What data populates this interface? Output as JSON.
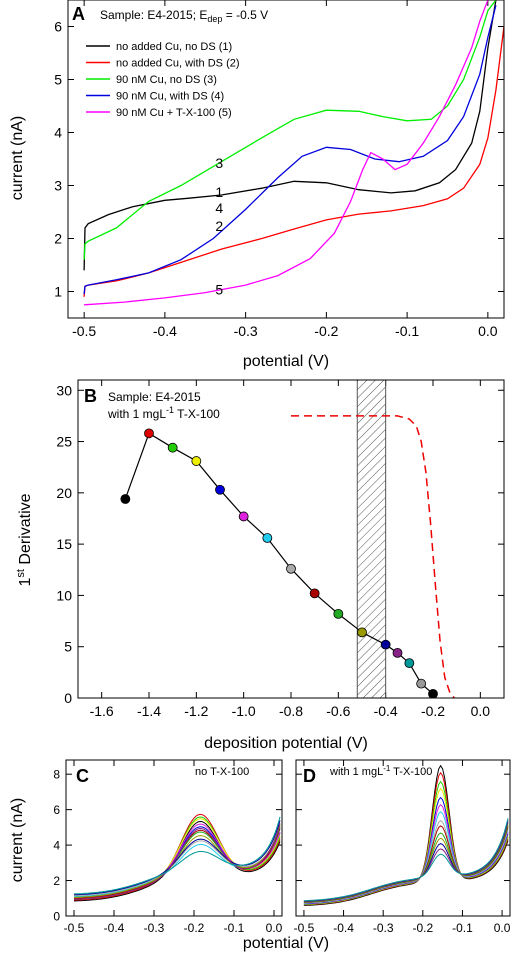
{
  "chart_data": [
    {
      "panel_letter": "A",
      "type": "line",
      "sample_note_prefix": "Sample: E4-2015; E",
      "sample_note_sub": "dep",
      "sample_note_suffix": " = -0.5 V",
      "xlabel": "potential (V)",
      "ylabel": "current (nA)",
      "xlim": [
        -0.52,
        0.02
      ],
      "ylim": [
        0.5,
        6.5
      ],
      "xticks": [
        "-0.5",
        "-0.4",
        "-0.3",
        "-0.2",
        "-0.1",
        "0.0"
      ],
      "yticks": [
        "1",
        "2",
        "3",
        "4",
        "5",
        "6"
      ],
      "legend_position": "top-left",
      "series": [
        {
          "name": "no added Cu, no DS (1)",
          "color": "#000000",
          "curve_label": "1",
          "x": [
            -0.5,
            -0.499,
            -0.495,
            -0.47,
            -0.44,
            -0.4,
            -0.37,
            -0.33,
            -0.28,
            -0.24,
            -0.2,
            -0.16,
            -0.12,
            -0.09,
            -0.06,
            -0.04,
            -0.02,
            -0.01,
            0.0,
            0.01
          ],
          "y": [
            1.4,
            2.2,
            2.28,
            2.45,
            2.6,
            2.72,
            2.76,
            2.82,
            2.95,
            3.08,
            3.05,
            2.92,
            2.86,
            2.9,
            3.05,
            3.3,
            3.8,
            4.4,
            5.6,
            6.5
          ]
        },
        {
          "name": "no added Cu, with DS (2)",
          "color": "#ff0000",
          "curve_label": "2",
          "x": [
            -0.5,
            -0.499,
            -0.495,
            -0.46,
            -0.42,
            -0.38,
            -0.33,
            -0.28,
            -0.24,
            -0.2,
            -0.16,
            -0.12,
            -0.08,
            -0.05,
            -0.03,
            -0.01,
            0.0,
            0.01,
            0.02
          ],
          "y": [
            0.9,
            1.1,
            1.12,
            1.2,
            1.35,
            1.55,
            1.8,
            2.0,
            2.18,
            2.35,
            2.46,
            2.52,
            2.62,
            2.75,
            2.95,
            3.4,
            3.9,
            4.8,
            6.0
          ]
        },
        {
          "name": "90 nM Cu, no DS (3)",
          "color": "#00ee00",
          "curve_label": "3",
          "x": [
            -0.5,
            -0.499,
            -0.495,
            -0.46,
            -0.42,
            -0.38,
            -0.33,
            -0.28,
            -0.24,
            -0.2,
            -0.16,
            -0.13,
            -0.1,
            -0.07,
            -0.05,
            -0.03,
            -0.01,
            0.0,
            0.01
          ],
          "y": [
            1.6,
            1.9,
            1.95,
            2.2,
            2.7,
            3.0,
            3.45,
            3.9,
            4.25,
            4.42,
            4.4,
            4.3,
            4.22,
            4.25,
            4.5,
            5.0,
            5.8,
            6.3,
            6.5
          ]
        },
        {
          "name": "90 nM Cu, with DS (4)",
          "color": "#0000dd",
          "curve_label": "4",
          "x": [
            -0.5,
            -0.499,
            -0.495,
            -0.46,
            -0.42,
            -0.38,
            -0.34,
            -0.3,
            -0.26,
            -0.23,
            -0.2,
            -0.17,
            -0.14,
            -0.11,
            -0.08,
            -0.05,
            -0.03,
            -0.01,
            0.0,
            0.01
          ],
          "y": [
            0.95,
            1.1,
            1.12,
            1.22,
            1.35,
            1.6,
            2.0,
            2.55,
            3.15,
            3.55,
            3.72,
            3.68,
            3.5,
            3.45,
            3.55,
            3.85,
            4.3,
            5.1,
            5.8,
            6.4
          ]
        },
        {
          "name": "90 nM Cu + T-X-100 (5)",
          "color": "#ff00ff",
          "curve_label": "5",
          "x": [
            -0.5,
            -0.45,
            -0.4,
            -0.35,
            -0.3,
            -0.26,
            -0.22,
            -0.19,
            -0.17,
            -0.155,
            -0.145,
            -0.13,
            -0.115,
            -0.1,
            -0.08,
            -0.06,
            -0.04,
            -0.02,
            -0.01,
            0.0
          ],
          "y": [
            0.75,
            0.8,
            0.88,
            0.98,
            1.12,
            1.3,
            1.62,
            2.1,
            2.7,
            3.3,
            3.62,
            3.5,
            3.3,
            3.4,
            3.8,
            4.3,
            4.9,
            5.6,
            6.1,
            6.5
          ]
        }
      ]
    },
    {
      "panel_letter": "B",
      "type": "scatter",
      "sample_note_line1": "Sample: E4-2015",
      "sample_note_line2_prefix": "with 1 mgL",
      "sample_note_line2_sup": "-1",
      "sample_note_line2_suffix": " T-X-100",
      "xlabel": "deposition potential (V)",
      "ylabel_main": "1",
      "ylabel_sup": "st",
      "ylabel_rest": " Derivative",
      "xlim": [
        -1.7,
        0.1
      ],
      "ylim": [
        0,
        31
      ],
      "xticks": [
        "-1.6",
        "-1.4",
        "-1.2",
        "-1.0",
        "-0.8",
        "-0.6",
        "-0.4",
        "-0.2",
        "0.0"
      ],
      "yticks": [
        "0",
        "5",
        "10",
        "15",
        "20",
        "25",
        "30"
      ],
      "shaded_region_x": [
        -0.52,
        -0.4
      ],
      "points": [
        {
          "x": -1.5,
          "y": 19.4,
          "color": "#000000"
        },
        {
          "x": -1.4,
          "y": 25.8,
          "color": "#dd0000"
        },
        {
          "x": -1.3,
          "y": 24.4,
          "color": "#22cc00"
        },
        {
          "x": -1.2,
          "y": 23.1,
          "color": "#eeee00"
        },
        {
          "x": -1.1,
          "y": 20.3,
          "color": "#0000dd"
        },
        {
          "x": -1.0,
          "y": 17.7,
          "color": "#dd22dd"
        },
        {
          "x": -0.9,
          "y": 15.6,
          "color": "#22ccee"
        },
        {
          "x": -0.8,
          "y": 12.6,
          "color": "#aaaaaa"
        },
        {
          "x": -0.7,
          "y": 10.2,
          "color": "#aa0000"
        },
        {
          "x": -0.6,
          "y": 8.2,
          "color": "#22aa22"
        },
        {
          "x": -0.5,
          "y": 6.4,
          "color": "#999900"
        },
        {
          "x": -0.4,
          "y": 5.2,
          "color": "#000099"
        },
        {
          "x": -0.35,
          "y": 4.4,
          "color": "#882288"
        },
        {
          "x": -0.3,
          "y": 3.4,
          "color": "#009999"
        },
        {
          "x": -0.25,
          "y": 1.4,
          "color": "#999999"
        },
        {
          "x": -0.2,
          "y": 0.4,
          "color": "#000000"
        }
      ],
      "dashed_curve": {
        "color": "#ee0000",
        "x": [
          -0.8,
          -0.35,
          -0.3,
          -0.27,
          -0.25,
          -0.23,
          -0.21,
          -0.19,
          -0.17,
          -0.15,
          -0.13,
          -0.11
        ],
        "y": [
          27.5,
          27.5,
          27.2,
          26.5,
          25.0,
          22.0,
          17.0,
          11.0,
          5.5,
          2.0,
          0.6,
          0.0
        ]
      }
    },
    {
      "panel_letter": "C",
      "type": "line",
      "note": "no T-X-100",
      "xlabel": "potential (V)",
      "ylabel": "current (nA)",
      "xlim": [
        -0.52,
        0.02
      ],
      "ylim": [
        0,
        8.8
      ],
      "xticks": [
        "-0.5",
        "-0.4",
        "-0.3",
        "-0.2",
        "-0.1",
        "0.0"
      ],
      "yticks": [
        "0",
        "2",
        "4",
        "6",
        "8"
      ],
      "curves": [
        {
          "color": "#000000",
          "peak": 4.7,
          "base": 0.8
        },
        {
          "color": "#dd0000",
          "peak": 5.1,
          "base": 0.85
        },
        {
          "color": "#22cc00",
          "peak": 4.95,
          "base": 0.9
        },
        {
          "color": "#eeee00",
          "peak": 4.85,
          "base": 0.95
        },
        {
          "color": "#0000dd",
          "peak": 4.4,
          "base": 1.0
        },
        {
          "color": "#dd22dd",
          "peak": 4.55,
          "base": 0.95
        },
        {
          "color": "#22ccee",
          "peak": 3.4,
          "base": 1.05
        },
        {
          "color": "#aaaaaa",
          "peak": 3.6,
          "base": 1.1
        },
        {
          "color": "#aa0000",
          "peak": 4.2,
          "base": 0.95
        },
        {
          "color": "#22aa22",
          "peak": 4.1,
          "base": 1.0
        },
        {
          "color": "#999900",
          "peak": 3.9,
          "base": 1.0
        },
        {
          "color": "#000099",
          "peak": 3.7,
          "base": 1.15
        },
        {
          "color": "#882288",
          "peak": 4.3,
          "base": 0.9
        },
        {
          "color": "#009999",
          "peak": 3.0,
          "base": 1.2
        }
      ]
    },
    {
      "panel_letter": "D",
      "type": "line",
      "note_prefix": "with 1 mgL",
      "note_sup": "-1",
      "note_suffix": " T-X-100",
      "xlabel": "potential (V)",
      "xlim": [
        -0.52,
        0.02
      ],
      "ylim": [
        0,
        8.8
      ],
      "xticks": [
        "-0.5",
        "-0.4",
        "-0.3",
        "-0.2",
        "-0.1",
        "0.0"
      ],
      "yticks": [
        "0",
        "2",
        "4",
        "6",
        "8"
      ],
      "curves": [
        {
          "color": "#000000",
          "peak": 7.8,
          "base": 0.55
        },
        {
          "color": "#dd0000",
          "peak": 7.4,
          "base": 0.58
        },
        {
          "color": "#22cc00",
          "peak": 6.9,
          "base": 0.6
        },
        {
          "color": "#eeee00",
          "peak": 6.5,
          "base": 0.62
        },
        {
          "color": "#0000dd",
          "peak": 6.0,
          "base": 0.64
        },
        {
          "color": "#dd22dd",
          "peak": 5.6,
          "base": 0.66
        },
        {
          "color": "#22ccee",
          "peak": 5.2,
          "base": 0.68
        },
        {
          "color": "#aaaaaa",
          "peak": 4.7,
          "base": 0.7
        },
        {
          "color": "#aa0000",
          "peak": 4.4,
          "base": 0.72
        },
        {
          "color": "#22aa22",
          "peak": 4.0,
          "base": 0.74
        },
        {
          "color": "#999900",
          "peak": 3.7,
          "base": 0.76
        },
        {
          "color": "#000099",
          "peak": 3.4,
          "base": 0.78
        },
        {
          "color": "#882288",
          "peak": 3.1,
          "base": 0.8
        },
        {
          "color": "#009999",
          "peak": 2.8,
          "base": 0.82
        }
      ]
    }
  ]
}
